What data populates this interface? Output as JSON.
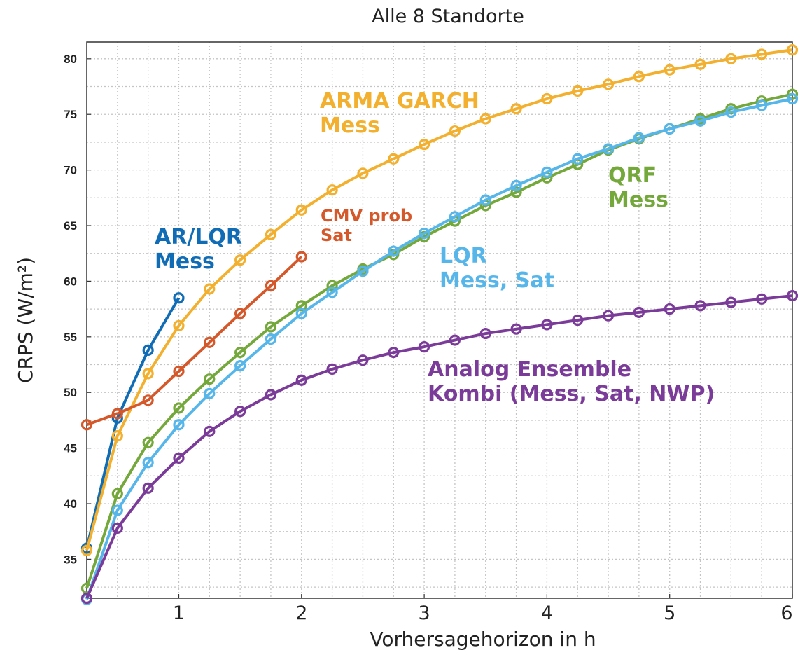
{
  "chart_data": {
    "type": "line",
    "title": "Alle 8 Standorte",
    "xlabel": "Vorhersagehorizon in h",
    "ylabel": "CRPS (W/m²)",
    "xlim": [
      0.25,
      6
    ],
    "ylim": [
      31.5,
      81.5
    ],
    "xticks": [
      "1",
      "2",
      "3",
      "4",
      "5",
      "6"
    ],
    "yticks": [
      "35",
      "40",
      "45",
      "50",
      "55",
      "60",
      "65",
      "70",
      "75",
      "80"
    ],
    "grid": true,
    "series": [
      {
        "name": "AR/LQR Mess",
        "color": "#0f6cb5",
        "x": [
          0.25,
          0.5,
          0.75,
          1.0
        ],
        "y": [
          36.0,
          47.7,
          53.8,
          58.5
        ]
      },
      {
        "name": "ARMA GARCH Mess",
        "color": "#f2b02e",
        "x": [
          0.25,
          0.5,
          0.75,
          1.0,
          1.25,
          1.5,
          1.75,
          2.0,
          2.25,
          2.5,
          2.75,
          3.0,
          3.25,
          3.5,
          3.75,
          4.0,
          4.25,
          4.5,
          4.75,
          5.0,
          5.25,
          5.5,
          5.75,
          6.0
        ],
        "y": [
          35.8,
          46.1,
          51.7,
          56.0,
          59.3,
          61.9,
          64.2,
          66.4,
          68.2,
          69.7,
          71.0,
          72.3,
          73.5,
          74.6,
          75.5,
          76.4,
          77.1,
          77.7,
          78.4,
          79.0,
          79.5,
          80.0,
          80.4,
          80.8
        ]
      },
      {
        "name": "CMV prob Sat",
        "color": "#d4582a",
        "x": [
          0.25,
          0.5,
          0.75,
          1.0,
          1.25,
          1.5,
          1.75,
          2.0
        ],
        "y": [
          47.1,
          48.1,
          49.3,
          51.9,
          54.5,
          57.1,
          59.6,
          62.2
        ]
      },
      {
        "name": "QRF Mess",
        "color": "#74a83b",
        "x": [
          0.25,
          0.5,
          0.75,
          1.0,
          1.25,
          1.5,
          1.75,
          2.0,
          2.25,
          2.5,
          2.75,
          3.0,
          3.25,
          3.5,
          3.75,
          4.0,
          4.25,
          4.5,
          4.75,
          5.0,
          5.25,
          5.5,
          5.75,
          6.0
        ],
        "y": [
          32.4,
          40.9,
          45.5,
          48.6,
          51.2,
          53.6,
          55.9,
          57.8,
          59.6,
          61.1,
          62.4,
          64.0,
          65.4,
          66.8,
          68.0,
          69.3,
          70.5,
          71.8,
          72.8,
          73.7,
          74.6,
          75.5,
          76.2,
          76.8
        ]
      },
      {
        "name": "LQR Mess, Sat",
        "color": "#56b6ea",
        "x": [
          0.25,
          0.5,
          0.75,
          1.0,
          1.25,
          1.5,
          1.75,
          2.0,
          2.25,
          2.5,
          2.75,
          3.0,
          3.25,
          3.5,
          3.75,
          4.0,
          4.25,
          4.5,
          4.75,
          5.0,
          5.25,
          5.5,
          5.75,
          6.0
        ],
        "y": [
          31.4,
          39.4,
          43.7,
          47.1,
          49.9,
          52.4,
          54.8,
          57.1,
          59.0,
          60.9,
          62.7,
          64.3,
          65.8,
          67.3,
          68.6,
          69.8,
          71.0,
          71.9,
          72.9,
          73.7,
          74.4,
          75.2,
          75.8,
          76.4
        ]
      },
      {
        "name": "Analog Ensemble Kombi (Mess, Sat, NWP)",
        "color": "#7b3b99",
        "x": [
          0.25,
          0.5,
          0.75,
          1.0,
          1.25,
          1.5,
          1.75,
          2.0,
          2.25,
          2.5,
          2.75,
          3.0,
          3.25,
          3.5,
          3.75,
          4.0,
          4.25,
          4.5,
          4.75,
          5.0,
          5.25,
          5.5,
          5.75,
          6.0
        ],
        "y": [
          31.5,
          37.8,
          41.4,
          44.1,
          46.5,
          48.3,
          49.8,
          51.1,
          52.1,
          52.9,
          53.6,
          54.1,
          54.7,
          55.3,
          55.7,
          56.1,
          56.5,
          56.9,
          57.2,
          57.5,
          57.8,
          58.1,
          58.4,
          58.7
        ]
      }
    ],
    "annotations": [
      {
        "lines": [
          "AR/LQR",
          "Mess"
        ],
        "color": "#0f6cb5"
      },
      {
        "lines": [
          "ARMA GARCH",
          "Mess"
        ],
        "color": "#f2b02e"
      },
      {
        "lines": [
          "CMV prob",
          "Sat"
        ],
        "color": "#d4582a"
      },
      {
        "lines": [
          "QRF",
          "Mess"
        ],
        "color": "#74a83b"
      },
      {
        "lines": [
          "LQR",
          "Mess, Sat"
        ],
        "color": "#56b6ea"
      },
      {
        "lines": [
          "Analog Ensemble",
          "Kombi (Mess, Sat, NWP)"
        ],
        "color": "#7b3b99"
      }
    ]
  }
}
